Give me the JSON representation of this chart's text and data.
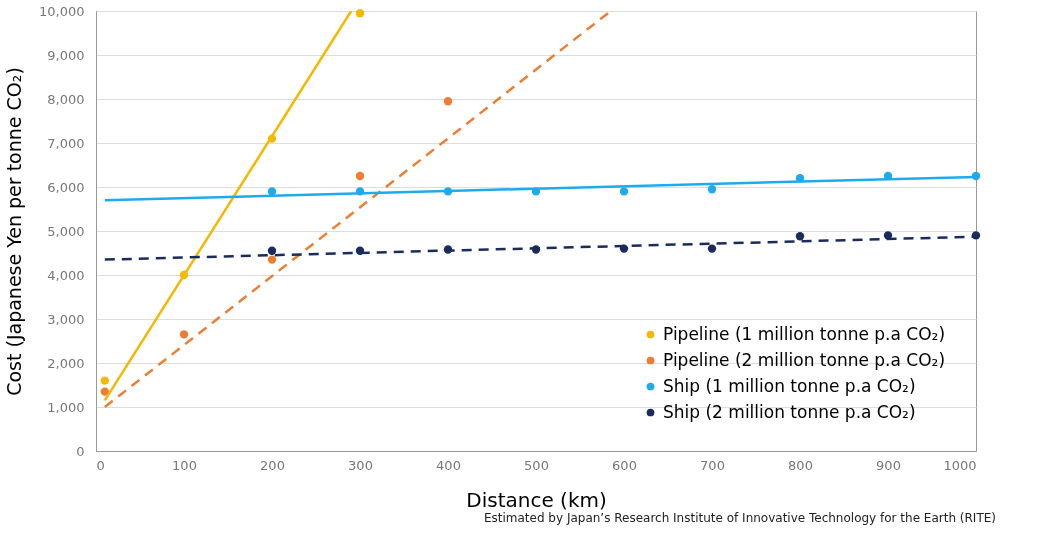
{
  "chart_data": {
    "type": "scatter",
    "ylabel": "Cost (Japanese Yen per tonne CO₂)",
    "xlabel": "Distance (km)",
    "annotations": [
      "Estimated by Japan’s Research Institute of Innovative Technology for the Earth (RITE)"
    ],
    "xlim": [
      0,
      1000
    ],
    "xticks": [
      0,
      100,
      200,
      300,
      400,
      500,
      600,
      700,
      800,
      900,
      1000
    ],
    "ylim": [
      0,
      10000
    ],
    "yticks": [
      0,
      {
        "value": 1000,
        "label": "1,000"
      },
      {
        "value": 2000,
        "label": "2,000"
      },
      {
        "value": 3000,
        "label": "3,000"
      },
      {
        "value": 4000,
        "label": "4,000"
      },
      {
        "value": 5000,
        "label": "5,000"
      },
      {
        "value": 6000,
        "label": "6,000"
      },
      {
        "value": 7000,
        "label": "7,000"
      },
      {
        "value": 8000,
        "label": "8,000"
      },
      {
        "value": 9000,
        "label": "9,000"
      },
      {
        "value": 10000,
        "label": "10,000"
      }
    ],
    "grid": "y",
    "legend": "bottom right",
    "series": [
      {
        "name": "Pipeline (1 million tonne p.a CO₂)",
        "marker": "circle",
        "color": "#f5b800",
        "x": [
          10,
          100,
          200,
          300
        ],
        "values": [
          1600,
          4000,
          7100,
          9950
        ]
      },
      {
        "name": "Pipeline (2 million tonne p.a CO₂)",
        "marker": "circle",
        "color": "#ed7d31",
        "x": [
          10,
          100,
          200,
          300,
          400
        ],
        "values": [
          1350,
          2650,
          4350,
          6250,
          7950
        ]
      },
      {
        "name": "Ship (1 million tonne p.a CO₂)",
        "marker": "circle",
        "color": "#1eaaeb",
        "x": [
          200,
          300,
          400,
          500,
          600,
          700,
          800,
          900,
          1000
        ],
        "values": [
          5900,
          5900,
          5900,
          5900,
          5900,
          5950,
          6200,
          6250,
          6250
        ]
      },
      {
        "name": "Ship (2 million tonne p.a CO₂)",
        "marker": "circle",
        "color": "#1a2c5b",
        "x": [
          200,
          300,
          400,
          500,
          600,
          700,
          800,
          900,
          1000
        ],
        "values": [
          4550,
          4550,
          4580,
          4580,
          4600,
          4600,
          4880,
          4900,
          4900
        ]
      },
      {
        "type": "line",
        "marker": "none",
        "line_style": "solid",
        "color": "#f5b800",
        "x": [
          10,
          290
        ],
        "values": [
          1150,
          10000
        ]
      },
      {
        "type": "line",
        "marker": "none",
        "line_style": "dashed",
        "color": "#ed7d31",
        "x": [
          10,
          585
        ],
        "values": [
          1000,
          10000
        ]
      },
      {
        "type": "line",
        "marker": "none",
        "line_style": "solid",
        "color": "#1eaaeb",
        "x": [
          10,
          1000
        ],
        "values": [
          5700,
          6230
        ]
      },
      {
        "type": "line",
        "marker": "none",
        "line_style": "dashed",
        "color": "#1a2c5b",
        "x": [
          10,
          1000
        ],
        "values": [
          4350,
          4870
        ]
      }
    ]
  }
}
